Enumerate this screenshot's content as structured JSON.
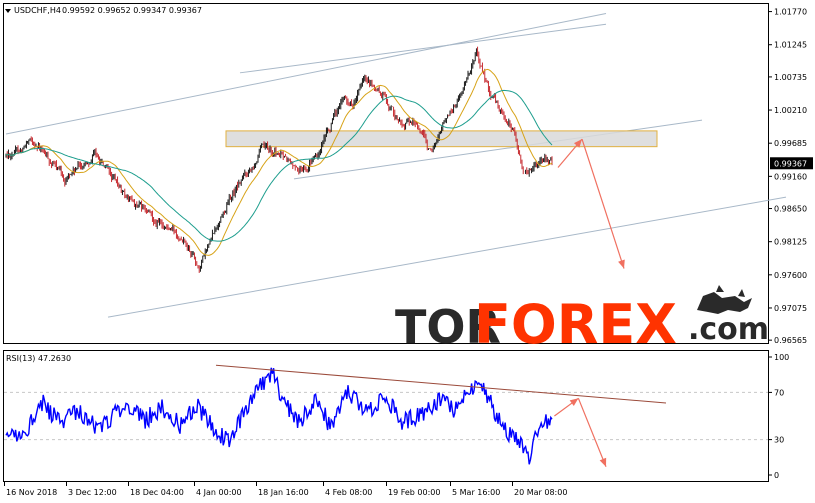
{
  "header": {
    "symbol": "USDCHF,H4",
    "quote": "0.99592 0.99652 0.99347 0.99367"
  },
  "logo": {
    "part1": "TOR",
    "part2": "FOREX",
    "part3": ".com"
  },
  "colors": {
    "bull": "#000000",
    "bear": "#c0141a",
    "ma_fast": "#d7a318",
    "ma_slow": "#1e9e8e",
    "channel": "#a8b8c8",
    "zone_fill": "#d9d9d9",
    "zone_border": "#e0b040",
    "arrow": "#f07060",
    "rsi": "#0000ff",
    "rsi_trend": "#9b4a3a",
    "logo_dark": "#2a2a2a",
    "logo_accent": "#ff3300"
  },
  "chart_data": [
    {
      "type": "candlestick",
      "symbol": "USDCHF",
      "timeframe": "H4",
      "current_price": 0.99367,
      "price_label": "0.99367",
      "yticks": [
        "1.01770",
        "1.01245",
        "1.00735",
        "1.00210",
        "0.99685",
        "0.99160",
        "0.98650",
        "0.98125",
        "0.97600",
        "0.97075",
        "0.96565"
      ],
      "ylim": [
        0.9652,
        1.0189
      ],
      "xticks": [
        "16 Nov 2018",
        "3 Dec 12:00",
        "18 Dec 04:00",
        "4 Jan 00:00",
        "18 Jan 16:00",
        "4 Feb 08:00",
        "19 Feb 00:00",
        "5 Mar 16:00",
        "20 Mar 08:00"
      ],
      "key_points": [
        {
          "bar": 0,
          "price": 0.9948
        },
        {
          "bar": 25,
          "price": 0.997
        },
        {
          "bar": 50,
          "price": 0.9912
        },
        {
          "bar": 75,
          "price": 0.995
        },
        {
          "bar": 100,
          "price": 0.9885
        },
        {
          "bar": 130,
          "price": 0.984
        },
        {
          "bar": 150,
          "price": 0.982
        },
        {
          "bar": 162,
          "price": 0.9773
        },
        {
          "bar": 175,
          "price": 0.9829
        },
        {
          "bar": 185,
          "price": 0.9872
        },
        {
          "bar": 200,
          "price": 0.9918
        },
        {
          "bar": 215,
          "price": 0.996
        },
        {
          "bar": 230,
          "price": 0.995
        },
        {
          "bar": 245,
          "price": 0.9925
        },
        {
          "bar": 262,
          "price": 0.995
        },
        {
          "bar": 275,
          "price": 1.001
        },
        {
          "bar": 283,
          "price": 1.004
        },
        {
          "bar": 290,
          "price": 1.003
        },
        {
          "bar": 300,
          "price": 1.0065
        },
        {
          "bar": 315,
          "price": 1.0045
        },
        {
          "bar": 330,
          "price": 1.0
        },
        {
          "bar": 345,
          "price": 0.9995
        },
        {
          "bar": 355,
          "price": 0.995
        },
        {
          "bar": 365,
          "price": 1.0
        },
        {
          "bar": 375,
          "price": 1.003
        },
        {
          "bar": 385,
          "price": 1.0065
        },
        {
          "bar": 393,
          "price": 1.0115
        },
        {
          "bar": 405,
          "price": 1.0045
        },
        {
          "bar": 415,
          "price": 1.0015
        },
        {
          "bar": 425,
          "price": 0.9985
        },
        {
          "bar": 432,
          "price": 0.992
        },
        {
          "bar": 445,
          "price": 0.9945
        },
        {
          "bar": 455,
          "price": 0.9937
        }
      ],
      "resistance_zone": {
        "from": 0.9963,
        "to": 0.9988
      },
      "channel_lines": [
        {
          "from": {
            "bar": 0,
            "price": 0.9983
          },
          "to": {
            "bar": 500,
            "price": 1.0174
          }
        },
        {
          "from": {
            "bar": 195,
            "price": 1.008
          },
          "to": {
            "bar": 500,
            "price": 1.0157
          }
        },
        {
          "from": {
            "bar": 240,
            "price": 0.9912
          },
          "to": {
            "bar": 580,
            "price": 1.0005
          }
        },
        {
          "from": {
            "bar": 85,
            "price": 0.9693
          },
          "to": {
            "bar": 650,
            "price": 0.9883
          }
        }
      ],
      "forecast_arrow": [
        {
          "bar": 460,
          "price": 0.993
        },
        {
          "bar": 480,
          "price": 0.9975
        },
        {
          "bar": 515,
          "price": 0.977
        }
      ]
    },
    {
      "type": "line",
      "indicator": "RSI",
      "label": "RSI(13) 47.2630",
      "value": 47.263,
      "yticks": [
        "100",
        "70",
        "30",
        "0"
      ],
      "ylim": [
        0,
        100
      ],
      "key_points": [
        {
          "bar": 0,
          "price": 30
        },
        {
          "bar": 15,
          "price": 36
        },
        {
          "bar": 30,
          "price": 62
        },
        {
          "bar": 45,
          "price": 44
        },
        {
          "bar": 60,
          "price": 56
        },
        {
          "bar": 75,
          "price": 40
        },
        {
          "bar": 90,
          "price": 50
        },
        {
          "bar": 100,
          "price": 62
        },
        {
          "bar": 115,
          "price": 46
        },
        {
          "bar": 130,
          "price": 58
        },
        {
          "bar": 145,
          "price": 42
        },
        {
          "bar": 160,
          "price": 58
        },
        {
          "bar": 175,
          "price": 38
        },
        {
          "bar": 185,
          "price": 28
        },
        {
          "bar": 200,
          "price": 55
        },
        {
          "bar": 215,
          "price": 80
        },
        {
          "bar": 222,
          "price": 85
        },
        {
          "bar": 232,
          "price": 62
        },
        {
          "bar": 245,
          "price": 45
        },
        {
          "bar": 258,
          "price": 65
        },
        {
          "bar": 270,
          "price": 42
        },
        {
          "bar": 285,
          "price": 72
        },
        {
          "bar": 300,
          "price": 52
        },
        {
          "bar": 315,
          "price": 68
        },
        {
          "bar": 330,
          "price": 45
        },
        {
          "bar": 345,
          "price": 50
        },
        {
          "bar": 360,
          "price": 62
        },
        {
          "bar": 375,
          "price": 55
        },
        {
          "bar": 388,
          "price": 75
        },
        {
          "bar": 395,
          "price": 80
        },
        {
          "bar": 405,
          "price": 58
        },
        {
          "bar": 418,
          "price": 36
        },
        {
          "bar": 428,
          "price": 30
        },
        {
          "bar": 435,
          "price": 12
        },
        {
          "bar": 442,
          "price": 40
        },
        {
          "bar": 450,
          "price": 45
        },
        {
          "bar": 455,
          "price": 52
        }
      ],
      "trend_line": {
        "from": {
          "bar": 175,
          "price": 93
        },
        "to": {
          "bar": 550,
          "price": 61
        }
      },
      "forecast_arrow": [
        {
          "bar": 457,
          "price": 50
        },
        {
          "bar": 477,
          "price": 65
        },
        {
          "bar": 500,
          "price": 7
        }
      ]
    }
  ]
}
